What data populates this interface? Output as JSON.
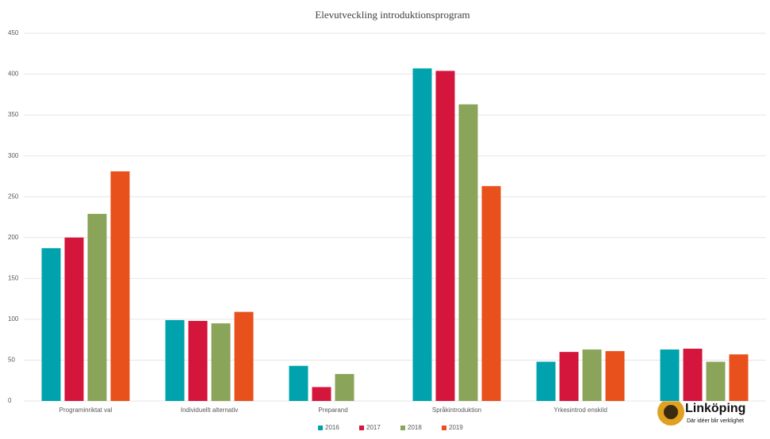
{
  "chart_data": {
    "type": "bar",
    "title": "Elevutveckling  introduktionsprogram",
    "categories": [
      "Programinriktat val",
      "Individuellt alternativ",
      "Preparand",
      "Språkintroduktion",
      "Yrkesintrod enskild",
      null
    ],
    "series": [
      {
        "name": "2016",
        "color": "#00a3ad",
        "values": [
          187,
          99,
          43,
          407,
          48,
          63
        ]
      },
      {
        "name": "2017",
        "color": "#d4163c",
        "values": [
          200,
          98,
          17,
          404,
          60,
          64
        ]
      },
      {
        "name": "2018",
        "color": "#8aa459",
        "values": [
          229,
          95,
          33,
          363,
          63,
          48
        ]
      },
      {
        "name": "2019",
        "color": "#e8501c",
        "values": [
          281,
          109,
          null,
          263,
          61,
          57
        ]
      }
    ],
    "ylim": [
      0,
      450
    ],
    "yticks": [
      0,
      50,
      100,
      150,
      200,
      250,
      300,
      350,
      400,
      450
    ],
    "grid": true,
    "legend": "bottom"
  },
  "logo": {
    "name": "Linköping",
    "tagline": "Där idéer blir verklighet"
  }
}
